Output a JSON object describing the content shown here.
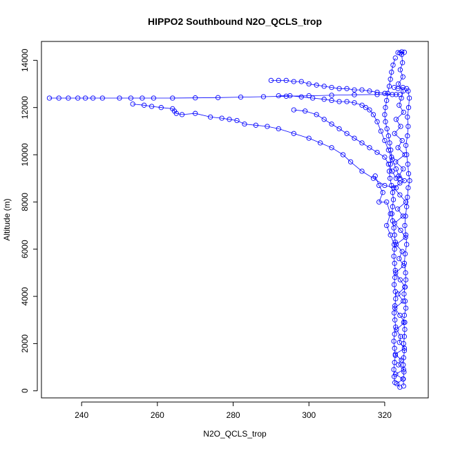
{
  "chart_data": {
    "type": "scatter",
    "title": "HIPPO2 Southbound N2O_QCLS_trop",
    "xlabel": "N2O_QCLS_trop",
    "ylabel": "Altitude (m)",
    "xlim": [
      229.4,
      331.5
    ],
    "ylim": [
      -300,
      14800
    ],
    "xticks": [
      240,
      260,
      280,
      300,
      320
    ],
    "yticks": [
      0,
      2000,
      4000,
      6000,
      8000,
      10000,
      12000,
      14000
    ],
    "grid": false,
    "legend": "none",
    "color": "#0000ff",
    "marker": "open-circle-with-lines",
    "series": [
      {
        "points": [
          [
            324,
            150
          ],
          [
            323.2,
            300
          ],
          [
            324.8,
            500
          ],
          [
            322.9,
            700
          ],
          [
            325,
            900
          ],
          [
            323.6,
            1100
          ],
          [
            324.4,
            1300
          ],
          [
            322.8,
            1550
          ],
          [
            325.2,
            1800
          ],
          [
            323.9,
            2050
          ],
          [
            324.2,
            2300
          ],
          [
            323.1,
            2600
          ],
          [
            325.3,
            2900
          ],
          [
            324,
            3200
          ],
          [
            322.7,
            3500
          ],
          [
            324.9,
            3800
          ],
          [
            323.5,
            4100
          ],
          [
            325.4,
            4400
          ],
          [
            324.1,
            4700
          ],
          [
            322.9,
            5000
          ],
          [
            325,
            5300
          ],
          [
            323.8,
            5600
          ],
          [
            324.6,
            5900
          ],
          [
            323,
            6200
          ],
          [
            325.5,
            6500
          ],
          [
            324.2,
            6800
          ],
          [
            322.6,
            7100
          ],
          [
            324.8,
            7400
          ],
          [
            323.4,
            7700
          ],
          [
            325.6,
            8000
          ],
          [
            324,
            8300
          ],
          [
            322.4,
            8600
          ],
          [
            325.2,
            8900
          ],
          [
            323.7,
            9100
          ],
          [
            324.9,
            9400
          ],
          [
            322.9,
            9700
          ],
          [
            325.3,
            10000
          ],
          [
            323.5,
            10300
          ],
          [
            324.6,
            10600
          ],
          [
            322.6,
            10900
          ],
          [
            324.2,
            11200
          ],
          [
            323,
            11500
          ],
          [
            325,
            11800
          ],
          [
            323.8,
            12100
          ],
          [
            324.4,
            12400
          ],
          [
            324.9,
            12700
          ],
          [
            323.6,
            13000
          ],
          [
            324.8,
            13300
          ],
          [
            324.1,
            13600
          ],
          [
            324.7,
            13900
          ],
          [
            324.5,
            14250
          ]
        ]
      },
      {
        "points": [
          [
            231.5,
            12400
          ],
          [
            234,
            12400
          ],
          [
            236.5,
            12400
          ],
          [
            239,
            12400
          ],
          [
            241,
            12400
          ],
          [
            243,
            12400
          ],
          [
            245.5,
            12400
          ],
          [
            250,
            12400
          ],
          [
            253,
            12400
          ],
          [
            256,
            12400
          ],
          [
            259,
            12400
          ],
          [
            264,
            12400
          ],
          [
            270,
            12410
          ],
          [
            276,
            12420
          ],
          [
            282,
            12440
          ],
          [
            288,
            12460
          ],
          [
            294,
            12480
          ],
          [
            300,
            12500
          ],
          [
            306,
            12520
          ],
          [
            312,
            12540
          ],
          [
            318,
            12550
          ],
          [
            323,
            12550
          ]
        ]
      },
      {
        "points": [
          [
            253.5,
            12150
          ],
          [
            256.5,
            12100
          ],
          [
            258.5,
            12050
          ],
          [
            261,
            12000
          ],
          [
            264,
            11950
          ],
          [
            264.5,
            11850
          ],
          [
            265,
            11750
          ],
          [
            266.5,
            11700
          ],
          [
            270,
            11750
          ],
          [
            274,
            11600
          ],
          [
            277,
            11550
          ],
          [
            279,
            11500
          ],
          [
            281,
            11450
          ],
          [
            283,
            11300
          ],
          [
            286,
            11250
          ],
          [
            289,
            11200
          ],
          [
            292,
            11100
          ],
          [
            296,
            10900
          ],
          [
            300,
            10700
          ],
          [
            303,
            10500
          ],
          [
            306,
            10300
          ],
          [
            309,
            10000
          ],
          [
            311,
            9700
          ],
          [
            314,
            9300
          ],
          [
            317,
            9000
          ],
          [
            320,
            8700
          ],
          [
            323,
            8600
          ]
        ]
      },
      {
        "points": [
          [
            290,
            13150
          ],
          [
            292,
            13150
          ],
          [
            294,
            13150
          ],
          [
            296,
            13100
          ],
          [
            298,
            13100
          ],
          [
            300,
            13000
          ],
          [
            302,
            12950
          ],
          [
            304,
            12900
          ],
          [
            306,
            12850
          ],
          [
            308,
            12800
          ],
          [
            310,
            12800
          ],
          [
            312,
            12750
          ],
          [
            314,
            12750
          ],
          [
            316,
            12700
          ],
          [
            318,
            12650
          ],
          [
            320,
            12600
          ],
          [
            322,
            12550
          ],
          [
            324,
            12550
          ]
        ]
      },
      {
        "points": [
          [
            292,
            12500
          ],
          [
            295,
            12500
          ],
          [
            298,
            12450
          ],
          [
            301,
            12400
          ],
          [
            304,
            12350
          ],
          [
            306,
            12300
          ],
          [
            308,
            12250
          ],
          [
            310,
            12250
          ],
          [
            312,
            12200
          ],
          [
            314,
            12100
          ],
          [
            315,
            12000
          ],
          [
            316,
            11900
          ],
          [
            317,
            11700
          ],
          [
            318,
            11400
          ],
          [
            319,
            11000
          ],
          [
            320,
            10600
          ],
          [
            321,
            10200
          ],
          [
            322,
            9800
          ],
          [
            323,
            9400
          ],
          [
            324,
            9000
          ]
        ]
      },
      {
        "points": [
          [
            296,
            11900
          ],
          [
            299,
            11850
          ],
          [
            302,
            11700
          ],
          [
            304,
            11500
          ],
          [
            306,
            11300
          ],
          [
            308,
            11100
          ],
          [
            310,
            10900
          ],
          [
            312,
            10700
          ],
          [
            314,
            10500
          ],
          [
            316,
            10300
          ],
          [
            318,
            10100
          ],
          [
            320,
            9900
          ],
          [
            321,
            9600
          ],
          [
            322,
            9300
          ],
          [
            323,
            9000
          ],
          [
            324,
            8800
          ]
        ]
      },
      {
        "points": [
          [
            317.5,
            9100
          ],
          [
            318.5,
            8700
          ],
          [
            319.5,
            8400
          ],
          [
            318.5,
            8000
          ],
          [
            320.5,
            8000
          ],
          [
            321.5,
            7500
          ],
          [
            320.5,
            7000
          ],
          [
            321.5,
            6600
          ],
          [
            322.5,
            6200
          ]
        ]
      },
      {
        "points": [
          [
            323.5,
            14330
          ],
          [
            324.5,
            14360
          ],
          [
            325.2,
            14340
          ],
          [
            324,
            14310
          ]
        ]
      },
      {
        "points": [
          [
            322.5,
            12850
          ],
          [
            323.5,
            12800
          ],
          [
            324.8,
            12850
          ],
          [
            325.8,
            12800
          ],
          [
            326.2,
            12700
          ],
          [
            326.5,
            12400
          ],
          [
            326.3,
            12000
          ],
          [
            326,
            11600
          ],
          [
            326.2,
            11200
          ],
          [
            326,
            10800
          ],
          [
            325.6,
            10400
          ],
          [
            325.8,
            10000
          ],
          [
            326.1,
            9600
          ],
          [
            326.3,
            9200
          ],
          [
            326.6,
            8900
          ],
          [
            326.2,
            8600
          ],
          [
            326,
            8200
          ],
          [
            325.8,
            7800
          ],
          [
            325.5,
            7400
          ],
          [
            325.3,
            7000
          ],
          [
            325.6,
            6600
          ],
          [
            325.8,
            6200
          ],
          [
            325.4,
            5800
          ],
          [
            325.2,
            5400
          ],
          [
            325.5,
            5000
          ],
          [
            325.6,
            4700
          ],
          [
            325.3,
            4400
          ],
          [
            325.1,
            4100
          ],
          [
            325.4,
            3800
          ],
          [
            325.6,
            3500
          ],
          [
            325.2,
            3200
          ],
          [
            325,
            2900
          ],
          [
            325.3,
            2600
          ],
          [
            325.2,
            2300
          ],
          [
            325,
            2000
          ],
          [
            325.2,
            1700
          ],
          [
            325,
            1400
          ],
          [
            324.9,
            1100
          ],
          [
            325.1,
            800
          ],
          [
            324.9,
            500
          ],
          [
            325,
            200
          ]
        ]
      },
      {
        "points": [
          [
            322.8,
            14100
          ],
          [
            322.2,
            13800
          ],
          [
            321.8,
            13500
          ],
          [
            321.5,
            13200
          ],
          [
            321.2,
            12900
          ],
          [
            320.8,
            12600
          ],
          [
            320.5,
            12300
          ],
          [
            320.2,
            12000
          ],
          [
            320,
            11700
          ],
          [
            320.2,
            11400
          ],
          [
            320.6,
            11100
          ],
          [
            321,
            10800
          ],
          [
            321.3,
            10500
          ],
          [
            321.6,
            10200
          ],
          [
            321.8,
            9900
          ],
          [
            321.5,
            9600
          ],
          [
            321.2,
            9300
          ],
          [
            321.4,
            9000
          ],
          [
            321.8,
            8700
          ],
          [
            322.1,
            8400
          ],
          [
            322.3,
            8100
          ],
          [
            322.1,
            7800
          ],
          [
            321.9,
            7500
          ],
          [
            322.1,
            7200
          ],
          [
            322.4,
            6900
          ],
          [
            322.6,
            6600
          ],
          [
            322.8,
            6300
          ],
          [
            322.6,
            6000
          ],
          [
            322.4,
            5700
          ],
          [
            322.6,
            5400
          ],
          [
            322.8,
            5100
          ],
          [
            322.7,
            4800
          ],
          [
            322.5,
            4500
          ],
          [
            322.8,
            4200
          ],
          [
            322.9,
            3900
          ],
          [
            322.7,
            3600
          ],
          [
            322.5,
            3300
          ],
          [
            322.7,
            3000
          ],
          [
            322.9,
            2700
          ],
          [
            322.6,
            2400
          ],
          [
            322.4,
            2100
          ],
          [
            322.6,
            1800
          ],
          [
            322.8,
            1500
          ],
          [
            322.6,
            1200
          ],
          [
            322.4,
            900
          ],
          [
            322.5,
            600
          ],
          [
            322.7,
            350
          ]
        ]
      }
    ]
  }
}
